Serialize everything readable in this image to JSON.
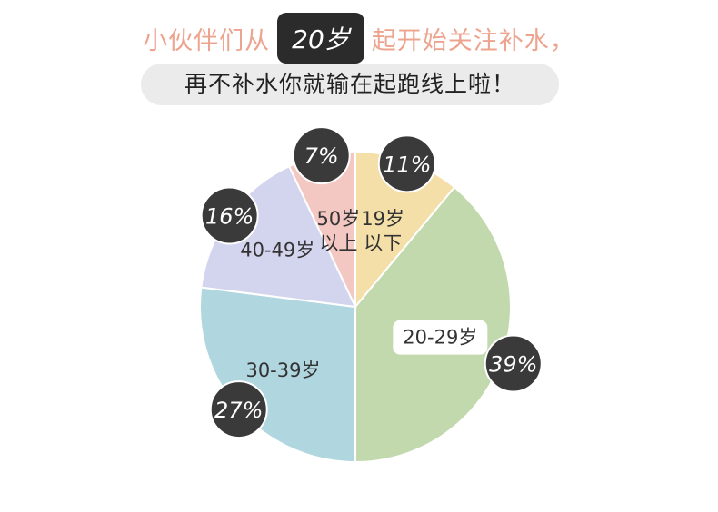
{
  "header": {
    "line1_before": "小伙伴们从",
    "line1_badge": "20岁",
    "line1_after": "起开始关注补水，",
    "line2": "再不补水你就输在起跑线上啦！"
  },
  "colors": {
    "title_pink": "#eda48f",
    "badge_dark": "#2b2b2b",
    "subline_bg": "#ebebeb",
    "slice_19_below": "#f4dfa8",
    "slice_20_29": "#c2d9ad",
    "slice_30_39": "#b0d7df",
    "slice_40_49": "#d3d4ed",
    "slice_50_above": "#f3c8c2"
  },
  "chart_data": {
    "type": "pie",
    "title": "",
    "slices": [
      {
        "label": "19岁\n以下",
        "value": 11,
        "value_label": "11%",
        "color": "#f4dfa8"
      },
      {
        "label": "20-29岁",
        "value": 39,
        "value_label": "39%",
        "color": "#c2d9ad"
      },
      {
        "label": "30-39岁",
        "value": 27,
        "value_label": "27%",
        "color": "#b0d7df"
      },
      {
        "label": "40-49岁",
        "value": 16,
        "value_label": "16%",
        "color": "#d3d4ed"
      },
      {
        "label": "50岁\n以上",
        "value": 7,
        "value_label": "7%",
        "color": "#f3c8c2"
      }
    ],
    "start_angle": "12 o'clock",
    "direction": "clockwise",
    "legend": "none"
  }
}
